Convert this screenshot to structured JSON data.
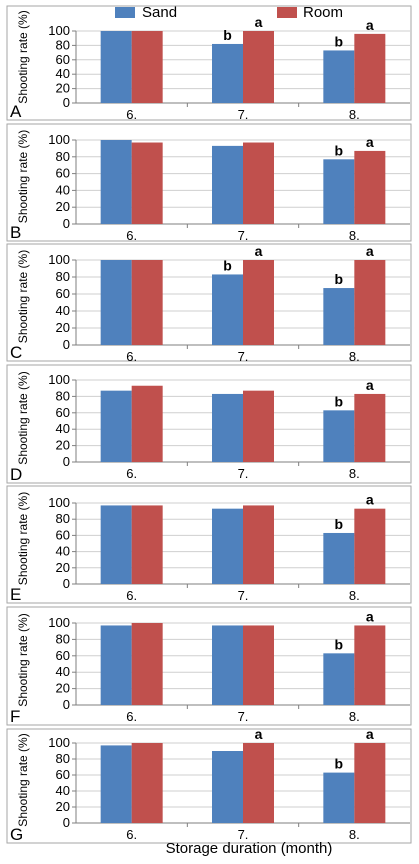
{
  "colors": {
    "sand": "#4f81bd",
    "room": "#c0504d",
    "frame": "#a6a6a6",
    "grid": "#cfcfcf",
    "axis": "#7f7f7f",
    "text": "#000000"
  },
  "legend": {
    "sand": "Sand",
    "room": "Room"
  },
  "xlabel": "Storage duration (month)",
  "chart_data": [
    {
      "type": "bar",
      "panel": "A",
      "ylabel": "Shooting rate (%)",
      "categories": [
        "6.",
        "7.",
        "8."
      ],
      "yticks": [
        "0",
        "20",
        "40",
        "60",
        "80",
        "100"
      ],
      "ylim": [
        0,
        100
      ],
      "series": [
        {
          "name": "Sand",
          "values": [
            100,
            82,
            73
          ],
          "labels": [
            "",
            "b",
            "b"
          ]
        },
        {
          "name": "Room",
          "values": [
            100,
            100,
            96
          ],
          "labels": [
            "",
            "a",
            "a"
          ]
        }
      ]
    },
    {
      "type": "bar",
      "panel": "B",
      "ylabel": "Shooting rate (%)",
      "categories": [
        "6.",
        "7.",
        "8."
      ],
      "yticks": [
        "0",
        "20",
        "40",
        "60",
        "80",
        "100"
      ],
      "ylim": [
        0,
        100
      ],
      "series": [
        {
          "name": "Sand",
          "values": [
            100,
            93,
            77
          ],
          "labels": [
            "",
            "",
            "b"
          ]
        },
        {
          "name": "Room",
          "values": [
            97,
            97,
            87
          ],
          "labels": [
            "",
            "",
            "a"
          ]
        }
      ]
    },
    {
      "type": "bar",
      "panel": "C",
      "ylabel": "Shooting rate (%)",
      "categories": [
        "6.",
        "7.",
        "8."
      ],
      "yticks": [
        "0",
        "20",
        "40",
        "60",
        "80",
        "100"
      ],
      "ylim": [
        0,
        100
      ],
      "series": [
        {
          "name": "Sand",
          "values": [
            100,
            83,
            67
          ],
          "labels": [
            "",
            "b",
            "b"
          ]
        },
        {
          "name": "Room",
          "values": [
            100,
            100,
            100
          ],
          "labels": [
            "",
            "a",
            "a"
          ]
        }
      ]
    },
    {
      "type": "bar",
      "panel": "D",
      "ylabel": "Shooting rate (%)",
      "categories": [
        "6.",
        "7.",
        "8."
      ],
      "yticks": [
        "0",
        "20",
        "40",
        "60",
        "80",
        "100"
      ],
      "ylim": [
        0,
        100
      ],
      "series": [
        {
          "name": "Sand",
          "values": [
            87,
            83,
            63
          ],
          "labels": [
            "",
            "",
            "b"
          ]
        },
        {
          "name": "Room",
          "values": [
            93,
            87,
            83
          ],
          "labels": [
            "",
            "",
            "a"
          ]
        }
      ]
    },
    {
      "type": "bar",
      "panel": "E",
      "ylabel": "Shooting rate (%)",
      "categories": [
        "6.",
        "7.",
        "8."
      ],
      "yticks": [
        "0",
        "20",
        "40",
        "60",
        "80",
        "100"
      ],
      "ylim": [
        0,
        100
      ],
      "series": [
        {
          "name": "Sand",
          "values": [
            97,
            93,
            63
          ],
          "labels": [
            "",
            "",
            "b"
          ]
        },
        {
          "name": "Room",
          "values": [
            97,
            97,
            93
          ],
          "labels": [
            "",
            "",
            "a"
          ]
        }
      ]
    },
    {
      "type": "bar",
      "panel": "F",
      "ylabel": "Shooting rate (%)",
      "categories": [
        "6.",
        "7.",
        "8."
      ],
      "yticks": [
        "0",
        "20",
        "40",
        "60",
        "80",
        "100"
      ],
      "ylim": [
        0,
        100
      ],
      "series": [
        {
          "name": "Sand",
          "values": [
            97,
            97,
            63
          ],
          "labels": [
            "",
            "",
            "b"
          ]
        },
        {
          "name": "Room",
          "values": [
            100,
            97,
            97
          ],
          "labels": [
            "",
            "",
            "a"
          ]
        }
      ]
    },
    {
      "type": "bar",
      "panel": "G",
      "ylabel": "Shooting rate (%)",
      "categories": [
        "6.",
        "7.",
        "8."
      ],
      "yticks": [
        "0",
        "20",
        "40",
        "60",
        "80",
        "100"
      ],
      "ylim": [
        0,
        100
      ],
      "series": [
        {
          "name": "Sand",
          "values": [
            97,
            90,
            63
          ],
          "labels": [
            "",
            "",
            "b"
          ]
        },
        {
          "name": "Room",
          "values": [
            100,
            100,
            100
          ],
          "labels": [
            "",
            "a",
            "a"
          ]
        }
      ]
    }
  ]
}
